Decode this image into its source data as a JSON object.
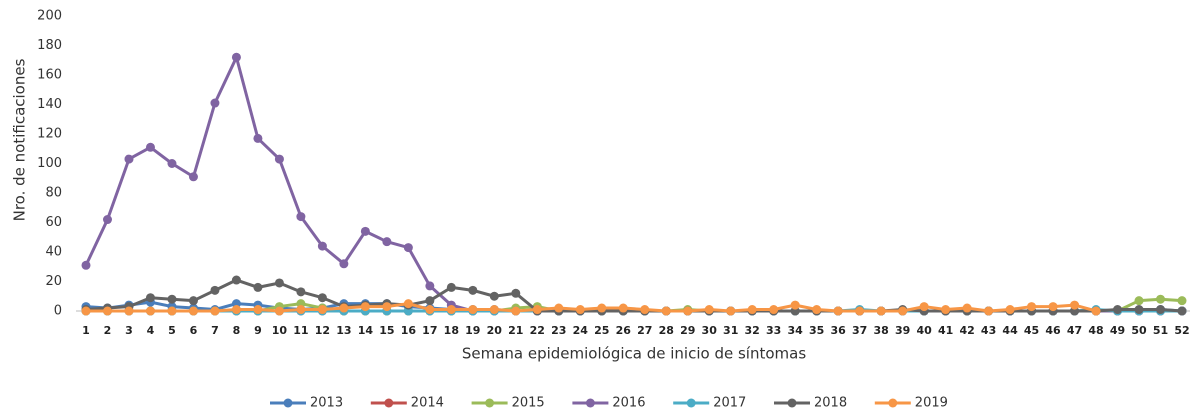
{
  "chart_data": {
    "type": "line",
    "x_label": "Semana epidemiológica de inicio de síntomas",
    "y_label": "Nro. de notificaciones",
    "categories": [
      "1",
      "2",
      "3",
      "4",
      "5",
      "6",
      "7",
      "8",
      "9",
      "10",
      "11",
      "12",
      "13",
      "14",
      "15",
      "16",
      "17",
      "18",
      "19",
      "20",
      "21",
      "22",
      "23",
      "24",
      "25",
      "26",
      "27",
      "28",
      "29",
      "30",
      "31",
      "32",
      "33",
      "34",
      "35",
      "36",
      "37",
      "38",
      "39",
      "40",
      "41",
      "42",
      "43",
      "44",
      "45",
      "46",
      "47",
      "48",
      "49",
      "50",
      "51",
      "52"
    ],
    "ylim": [
      0,
      200
    ],
    "yticks": [
      0,
      20,
      40,
      60,
      80,
      100,
      120,
      140,
      160,
      180,
      200
    ],
    "series": [
      {
        "name": "2013",
        "color": "#4a7ebb",
        "values": [
          3,
          2,
          4,
          6,
          3,
          2,
          1,
          5,
          4,
          2,
          1,
          2,
          5,
          5,
          5,
          3,
          2,
          1,
          1,
          1,
          0,
          0,
          0,
          0,
          0,
          0,
          0,
          0,
          0,
          0,
          0,
          0,
          0,
          0,
          0,
          0,
          0,
          0,
          0,
          0,
          0,
          0,
          0,
          0,
          0,
          0,
          0,
          0,
          0,
          0,
          1,
          0
        ]
      },
      {
        "name": "2014",
        "color": "#c0504d",
        "values": [
          0,
          0,
          0,
          0,
          0,
          0,
          0,
          0,
          0,
          0,
          0,
          0,
          0,
          0,
          0,
          0,
          0,
          0,
          0,
          0,
          0,
          0,
          0,
          0,
          0,
          0,
          0,
          0,
          0,
          0,
          0,
          0,
          0,
          0,
          0,
          0,
          0,
          0,
          0,
          0,
          0,
          0,
          0,
          0,
          0,
          0,
          0,
          0,
          0,
          0,
          0,
          0
        ]
      },
      {
        "name": "2015",
        "color": "#9bbb59",
        "values": [
          0,
          0,
          0,
          0,
          0,
          0,
          0,
          0,
          0,
          3,
          5,
          2,
          0,
          0,
          0,
          0,
          0,
          0,
          0,
          0,
          2,
          3,
          0,
          0,
          0,
          0,
          0,
          0,
          1,
          0,
          0,
          0,
          0,
          0,
          0,
          0,
          0,
          0,
          0,
          0,
          0,
          0,
          0,
          0,
          0,
          0,
          0,
          0,
          0,
          7,
          8,
          7
        ]
      },
      {
        "name": "2016",
        "color": "#8064a2",
        "values": [
          31,
          62,
          103,
          111,
          100,
          91,
          141,
          172,
          117,
          103,
          64,
          44,
          32,
          54,
          47,
          43,
          17,
          4,
          0,
          0,
          0,
          0,
          0,
          0,
          0,
          0,
          0,
          0,
          0,
          0,
          0,
          0,
          0,
          0,
          0,
          0,
          0,
          0,
          0,
          0,
          0,
          0,
          0,
          0,
          0,
          0,
          0,
          0,
          0,
          0,
          0,
          0
        ]
      },
      {
        "name": "2017",
        "color": "#4bacc6",
        "values": [
          0,
          0,
          0,
          0,
          0,
          0,
          0,
          0,
          0,
          0,
          0,
          0,
          0,
          0,
          0,
          0,
          0,
          0,
          0,
          0,
          0,
          0,
          0,
          0,
          0,
          0,
          0,
          0,
          0,
          0,
          0,
          0,
          0,
          0,
          0,
          0,
          1,
          0,
          0,
          0,
          0,
          0,
          0,
          0,
          0,
          0,
          0,
          1,
          0,
          0,
          0,
          0
        ]
      },
      {
        "name": "2018",
        "color": "#636363",
        "values": [
          1,
          2,
          3,
          9,
          8,
          7,
          14,
          21,
          16,
          19,
          13,
          9,
          3,
          4,
          5,
          4,
          7,
          16,
          14,
          10,
          12,
          0,
          0,
          0,
          0,
          0,
          0,
          0,
          0,
          0,
          0,
          0,
          0,
          0,
          0,
          0,
          0,
          0,
          1,
          0,
          0,
          0,
          0,
          0,
          0,
          0,
          0,
          0,
          1,
          1,
          1,
          0
        ]
      },
      {
        "name": "2019",
        "color": "#f79646",
        "values": [
          0,
          0,
          0,
          0,
          0,
          0,
          0,
          1,
          1,
          0,
          1,
          1,
          2,
          3,
          3,
          5,
          1,
          1,
          1,
          1,
          0,
          1,
          2,
          1,
          2,
          2,
          1,
          0,
          0,
          1,
          0,
          1,
          1,
          4,
          1,
          0,
          0,
          0,
          0,
          3,
          1,
          2,
          0,
          1,
          3,
          3,
          4,
          0,
          null,
          null,
          null,
          null
        ]
      }
    ]
  }
}
